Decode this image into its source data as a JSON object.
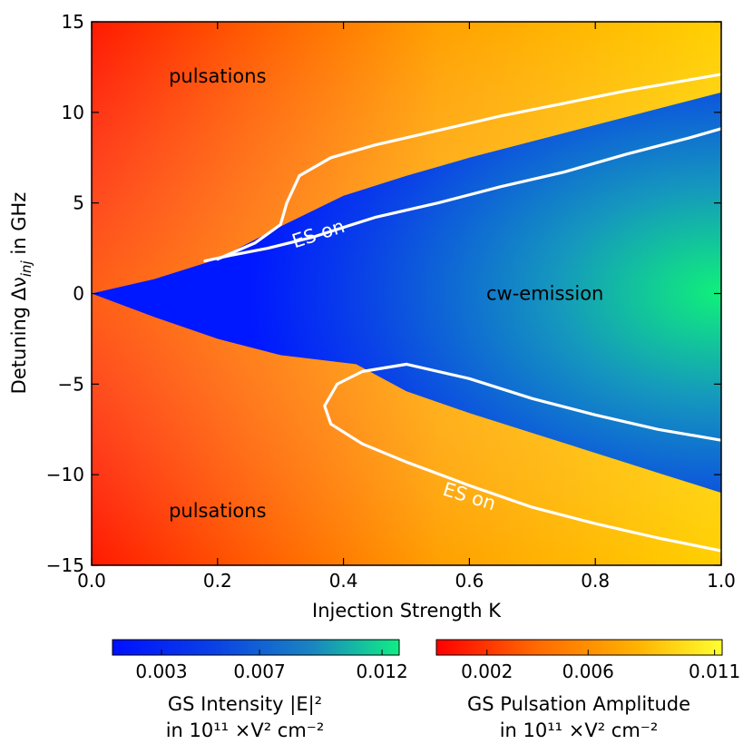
{
  "chart_data": {
    "type": "heatmap",
    "xlabel": "Injection Strength K",
    "ylabel": "Detuning Δν",
    "ylabel_sub": "inj",
    "ylabel_suffix": " in GHz",
    "xlim": [
      0.0,
      1.0
    ],
    "ylim": [
      -15,
      15
    ],
    "x_ticks": [
      0.0,
      0.2,
      0.4,
      0.6,
      0.8,
      1.0
    ],
    "x_tick_labels": [
      "0.0",
      "0.2",
      "0.4",
      "0.6",
      "0.8",
      "1.0"
    ],
    "y_ticks": [
      15,
      10,
      5,
      0,
      -5,
      -10,
      -15
    ],
    "y_tick_labels": [
      "15",
      "10",
      "5",
      "0",
      "−5",
      "−10",
      "−15"
    ],
    "annotations": [
      {
        "id": "pulsations-top",
        "text": "pulsations",
        "x": 0.2,
        "y": 12
      },
      {
        "id": "pulsations-bottom",
        "text": "pulsations",
        "x": 0.2,
        "y": -12
      },
      {
        "id": "cw-emission",
        "text": "cw-emission",
        "x": 0.72,
        "y": 0
      },
      {
        "id": "es-on-top",
        "text": "ES on",
        "x": 0.36,
        "y": 3.3,
        "rotate": -18
      },
      {
        "id": "es-on-bottom",
        "text": "ES on",
        "x": 0.6,
        "y": -11.2,
        "rotate": 17
      }
    ],
    "regions": {
      "cw_boundary_upper": [
        [
          0.0,
          0
        ],
        [
          0.1,
          0.8
        ],
        [
          0.2,
          1.9
        ],
        [
          0.3,
          3.7
        ],
        [
          0.4,
          5.4
        ],
        [
          0.5,
          6.5
        ],
        [
          0.6,
          7.5
        ],
        [
          0.7,
          8.4
        ],
        [
          0.8,
          9.3
        ],
        [
          0.9,
          10.2
        ],
        [
          1.0,
          11.1
        ]
      ],
      "cw_boundary_lower": [
        [
          0.0,
          0
        ],
        [
          0.1,
          -1.3
        ],
        [
          0.2,
          -2.5
        ],
        [
          0.3,
          -3.4
        ],
        [
          0.42,
          -3.9
        ],
        [
          0.5,
          -5.4
        ],
        [
          0.6,
          -6.6
        ],
        [
          0.7,
          -7.7
        ],
        [
          0.8,
          -8.8
        ],
        [
          0.9,
          -9.9
        ],
        [
          1.0,
          -11.0
        ]
      ]
    },
    "series": [
      {
        "name": "ES on boundary (upper, outer)",
        "points": [
          [
            0.2,
            1.9
          ],
          [
            0.26,
            2.8
          ],
          [
            0.3,
            3.8
          ],
          [
            0.31,
            5.0
          ],
          [
            0.33,
            6.5
          ],
          [
            0.38,
            7.5
          ],
          [
            0.45,
            8.2
          ],
          [
            0.55,
            9.0
          ],
          [
            0.65,
            9.8
          ],
          [
            0.75,
            10.5
          ],
          [
            0.85,
            11.2
          ],
          [
            0.95,
            11.8
          ],
          [
            1.0,
            12.1
          ]
        ]
      },
      {
        "name": "ES on boundary (upper, inner)",
        "points": [
          [
            0.18,
            1.8
          ],
          [
            0.22,
            2.1
          ],
          [
            0.28,
            2.5
          ],
          [
            0.35,
            3.1
          ],
          [
            0.45,
            4.2
          ],
          [
            0.55,
            5.0
          ],
          [
            0.65,
            5.9
          ],
          [
            0.75,
            6.7
          ],
          [
            0.85,
            7.7
          ],
          [
            0.95,
            8.6
          ],
          [
            1.0,
            9.1
          ]
        ]
      },
      {
        "name": "ES on boundary (lower, outer)",
        "points": [
          [
            0.5,
            -3.9
          ],
          [
            0.43,
            -4.3
          ],
          [
            0.39,
            -5.0
          ],
          [
            0.37,
            -6.2
          ],
          [
            0.38,
            -7.2
          ],
          [
            0.43,
            -8.3
          ],
          [
            0.5,
            -9.3
          ],
          [
            0.6,
            -10.6
          ],
          [
            0.7,
            -11.8
          ],
          [
            0.8,
            -12.7
          ],
          [
            0.9,
            -13.5
          ],
          [
            1.0,
            -14.2
          ]
        ]
      },
      {
        "name": "ES on boundary (lower, inner)",
        "points": [
          [
            0.43,
            -4.3
          ],
          [
            0.5,
            -3.9
          ],
          [
            0.6,
            -4.7
          ],
          [
            0.7,
            -5.8
          ],
          [
            0.8,
            -6.7
          ],
          [
            0.9,
            -7.5
          ],
          [
            1.0,
            -8.1
          ]
        ]
      }
    ],
    "colorbars": [
      {
        "id": "gs-intensity",
        "colors": [
          "#0010ff",
          "#0a3ae8",
          "#1a7fc4",
          "#10e88a"
        ],
        "ticks": [
          0.003,
          0.007,
          0.012
        ],
        "tick_labels": [
          "0.003",
          "0.007",
          "0.012"
        ],
        "label_line1": "GS Intensity |E|²",
        "label_line2": "in 10¹¹ ×V² cm⁻²"
      },
      {
        "id": "gs-pulsation",
        "colors": [
          "#ff0000",
          "#ff6a00",
          "#ffb000",
          "#ffff30"
        ],
        "ticks": [
          0.002,
          0.006,
          0.011
        ],
        "tick_labels": [
          "0.002",
          "0.006",
          "0.011"
        ],
        "label_line1": "GS Pulsation Amplitude",
        "label_line2": "in 10¹¹ ×V² cm⁻²"
      }
    ]
  }
}
